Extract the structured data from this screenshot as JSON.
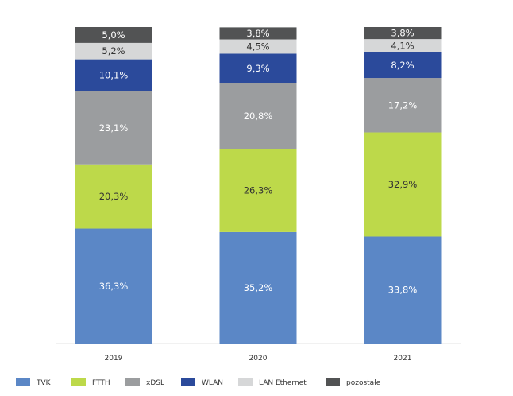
{
  "chart_data": {
    "type": "bar",
    "stacked": true,
    "categories": [
      "2019",
      "2020",
      "2021"
    ],
    "series": [
      {
        "name": "TVK",
        "color": "#5b87c6",
        "label_color": "#ffffff",
        "values": [
          36.3,
          35.2,
          33.8
        ],
        "labels": [
          "36,3%",
          "35,2%",
          "33,8%"
        ]
      },
      {
        "name": "FTTH",
        "color": "#bdd94a",
        "label_color": "#333333",
        "values": [
          20.3,
          26.3,
          32.9
        ],
        "labels": [
          "20,3%",
          "26,3%",
          "32,9%"
        ]
      },
      {
        "name": "xDSL",
        "color": "#9b9d9f",
        "label_color": "#ffffff",
        "values": [
          23.1,
          20.8,
          17.2
        ],
        "labels": [
          "23,1%",
          "20,8%",
          "17,2%"
        ]
      },
      {
        "name": "WLAN",
        "color": "#2b4a9b",
        "label_color": "#ffffff",
        "values": [
          10.1,
          9.3,
          8.2
        ],
        "labels": [
          "10,1%",
          "9,3%",
          "8,2%"
        ]
      },
      {
        "name": "LAN Ethernet",
        "color": "#d6d7d8",
        "label_color": "#333333",
        "values": [
          5.2,
          4.5,
          4.1
        ],
        "labels": [
          "5,2%",
          "4,5%",
          "4,1%"
        ]
      },
      {
        "name": "pozostałe",
        "color": "#525354",
        "label_color": "#ffffff",
        "values": [
          5.0,
          3.8,
          3.8
        ],
        "labels": [
          "5,0%",
          "3,8%",
          "3,8%"
        ]
      }
    ],
    "ylim": [
      0,
      100
    ],
    "grid": false,
    "legend_position": "bottom"
  }
}
